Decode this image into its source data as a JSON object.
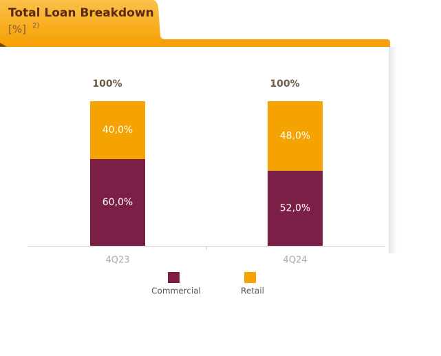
{
  "chart_data": {
    "type": "stacked-bar",
    "title": "Total Loan Breakdown",
    "subtitle": "[%]",
    "subtitle_note": "2)",
    "categories": [
      "4Q23",
      "4Q24"
    ],
    "series": [
      {
        "name": "Commercial",
        "color": "#7b1f46",
        "values": [
          60,
          52
        ],
        "value_labels": [
          "60,0%",
          "52,0%"
        ]
      },
      {
        "name": "Retail",
        "color": "#f5a300",
        "values": [
          40,
          48
        ],
        "value_labels": [
          "40,0%",
          "48,0%"
        ]
      }
    ],
    "total_labels": [
      "100%",
      "100%"
    ],
    "ylim": [
      0,
      100
    ]
  }
}
